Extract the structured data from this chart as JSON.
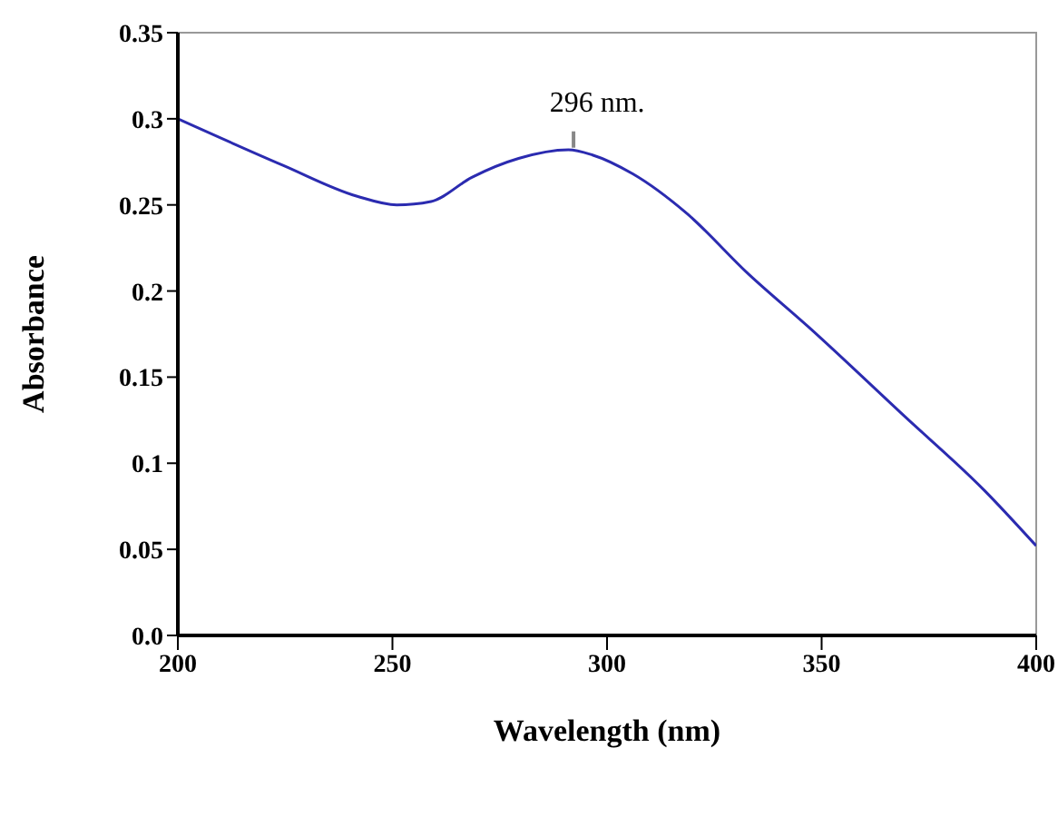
{
  "chart_data": {
    "type": "line",
    "xlabel": "Wavelength (nm)",
    "ylabel": "Absorbance",
    "x": [
      200,
      224.5,
      241.8,
      251,
      259,
      268.5,
      279.4,
      291,
      296.6,
      306,
      318.6,
      332.9,
      347,
      369,
      388,
      400
    ],
    "series": [
      {
        "color": "#2b2bb0",
        "values": [
          0.3,
          0.273,
          0.255,
          0.25,
          0.252,
          0.266,
          0.277,
          0.282,
          0.279,
          0.268,
          0.245,
          0.21,
          0.179,
          0.128,
          0.084,
          0.052
        ]
      }
    ],
    "xlim": [
      200,
      400
    ],
    "xticks": [
      200,
      250,
      300,
      350,
      400
    ],
    "ylim": [
      0,
      0.35
    ],
    "yticks": [
      {
        "value": 0,
        "label": "0.0"
      },
      0.05,
      0.1,
      0.15,
      0.2,
      0.25,
      0.3,
      0.35
    ],
    "annotations": [
      {
        "text": "296 nm.",
        "x": 296,
        "y": 0.279
      }
    ],
    "marker": "none",
    "line_style": "solid",
    "grid": false
  }
}
